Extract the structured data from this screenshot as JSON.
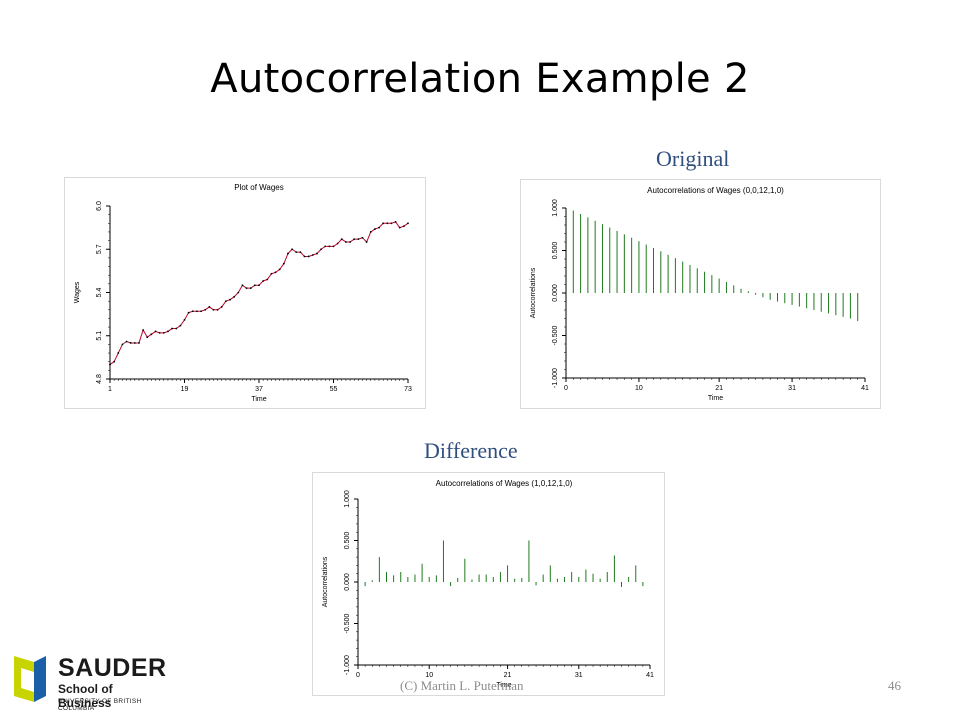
{
  "slide": {
    "title": "Autocorrelation Example 2",
    "label_original": "Original",
    "label_difference": "Difference",
    "footer_left": "(C) Martin  L. Puterman",
    "page_number": "46"
  },
  "logo": {
    "name": "SAUDER",
    "line2": "School of Business",
    "line3": "UNIVERSITY OF BRITISH COLUMBIA",
    "colors": {
      "yellow": "#c8d400",
      "blue": "#1b5fa8"
    }
  },
  "chart_data": [
    {
      "type": "line",
      "title": "Plot of Wages",
      "xlabel": "Time",
      "ylabel": "Wages",
      "xlim": [
        1,
        73
      ],
      "ylim": [
        4.8,
        6.0
      ],
      "x_ticks": [
        1,
        19,
        37,
        55,
        73
      ],
      "y_ticks": [
        "4.8",
        "5.1",
        "5.4",
        "5.7",
        "6.0"
      ],
      "color": "#c0002a",
      "points_color": "#000000",
      "x": [
        1,
        2,
        3,
        4,
        5,
        6,
        7,
        8,
        9,
        10,
        11,
        12,
        13,
        14,
        15,
        16,
        17,
        18,
        19,
        20,
        21,
        22,
        23,
        24,
        25,
        26,
        27,
        28,
        29,
        30,
        31,
        32,
        33,
        34,
        35,
        36,
        37,
        38,
        39,
        40,
        41,
        42,
        43,
        44,
        45,
        46,
        47,
        48,
        49,
        50,
        51,
        52,
        53,
        54,
        55,
        56,
        57,
        58,
        59,
        60,
        61,
        62,
        63,
        64,
        65,
        66,
        67,
        68,
        69,
        70,
        71,
        72,
        73
      ],
      "y": [
        4.9,
        4.92,
        4.98,
        5.04,
        5.06,
        5.05,
        5.05,
        5.05,
        5.14,
        5.09,
        5.11,
        5.13,
        5.12,
        5.12,
        5.13,
        5.15,
        5.15,
        5.17,
        5.21,
        5.26,
        5.27,
        5.27,
        5.27,
        5.28,
        5.3,
        5.28,
        5.28,
        5.3,
        5.34,
        5.35,
        5.37,
        5.4,
        5.45,
        5.43,
        5.43,
        5.45,
        5.45,
        5.48,
        5.49,
        5.53,
        5.54,
        5.56,
        5.6,
        5.67,
        5.7,
        5.68,
        5.68,
        5.65,
        5.65,
        5.66,
        5.67,
        5.7,
        5.72,
        5.72,
        5.72,
        5.74,
        5.77,
        5.75,
        5.75,
        5.77,
        5.77,
        5.78,
        5.75,
        5.82,
        5.84,
        5.85,
        5.88,
        5.88,
        5.88,
        5.89,
        5.85,
        5.86,
        5.88
      ]
    },
    {
      "type": "bar",
      "title": "Autocorrelations of Wages (0,0,12,1,0)",
      "xlabel": "Time",
      "ylabel": "Autocorrelations",
      "xlim": [
        0,
        41
      ],
      "ylim": [
        -1.0,
        1.0
      ],
      "x_ticks": [
        0,
        10,
        21,
        31,
        41
      ],
      "y_ticks": [
        "-1.000",
        "-0.500",
        "0.000",
        "0.500",
        "1.000"
      ],
      "color": "#1e7a1e",
      "x": [
        1,
        2,
        3,
        4,
        5,
        6,
        7,
        8,
        9,
        10,
        11,
        12,
        13,
        14,
        15,
        16,
        17,
        18,
        19,
        20,
        21,
        22,
        23,
        24,
        25,
        26,
        27,
        28,
        29,
        30,
        31,
        32,
        33,
        34,
        35,
        36,
        37,
        38,
        39,
        40
      ],
      "values": [
        0.97,
        0.93,
        0.89,
        0.85,
        0.81,
        0.77,
        0.73,
        0.69,
        0.65,
        0.61,
        0.57,
        0.53,
        0.49,
        0.45,
        0.41,
        0.37,
        0.33,
        0.29,
        0.25,
        0.21,
        0.17,
        0.13,
        0.09,
        0.05,
        0.02,
        -0.02,
        -0.05,
        -0.08,
        -0.1,
        -0.12,
        -0.14,
        -0.16,
        -0.18,
        -0.2,
        -0.22,
        -0.24,
        -0.26,
        -0.28,
        -0.3,
        -0.33
      ]
    },
    {
      "type": "bar",
      "title": "Autocorrelations of Wages (1,0,12,1,0)",
      "xlabel": "Time",
      "ylabel": "Autocorrelations",
      "xlim": [
        0,
        41
      ],
      "ylim": [
        -1.0,
        1.0
      ],
      "x_ticks": [
        0,
        10,
        21,
        31,
        41
      ],
      "y_ticks": [
        "-1.000",
        "-0.500",
        "0.000",
        "0.500",
        "1.000"
      ],
      "color": "#1e7a1e",
      "x": [
        1,
        2,
        3,
        4,
        5,
        6,
        7,
        8,
        9,
        10,
        11,
        12,
        13,
        14,
        15,
        16,
        17,
        18,
        19,
        20,
        21,
        22,
        23,
        24,
        25,
        26,
        27,
        28,
        29,
        30,
        31,
        32,
        33,
        34,
        35,
        36,
        37,
        38,
        39,
        40
      ],
      "values": [
        -0.05,
        0.02,
        0.3,
        0.12,
        0.08,
        0.12,
        0.06,
        0.09,
        0.22,
        0.06,
        0.08,
        0.5,
        -0.05,
        0.05,
        0.28,
        0.03,
        0.09,
        0.09,
        0.06,
        0.12,
        0.2,
        0.04,
        0.05,
        0.5,
        -0.04,
        0.09,
        0.2,
        0.04,
        0.06,
        0.12,
        0.06,
        0.15,
        0.1,
        0.04,
        0.12,
        0.32,
        -0.06,
        0.06,
        0.2,
        -0.05
      ]
    }
  ]
}
